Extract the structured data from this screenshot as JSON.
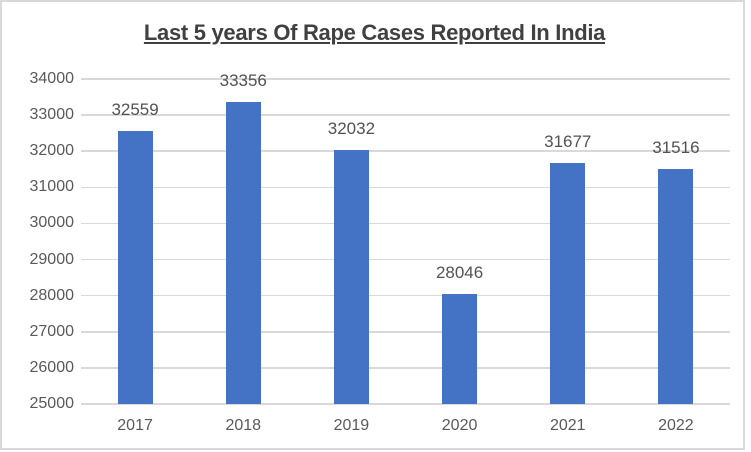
{
  "chart_data": {
    "type": "bar",
    "title": "Last 5 years Of Rape Cases Reported In India",
    "categories": [
      "2017",
      "2018",
      "2019",
      "2020",
      "2021",
      "2022"
    ],
    "values": [
      32559,
      33356,
      32032,
      28046,
      31677,
      31516
    ],
    "data_labels": [
      "32559",
      "33356",
      "32032",
      "28046",
      "31677",
      "31516"
    ],
    "xlabel": "",
    "ylabel": "",
    "ylim": [
      25000,
      34000
    ],
    "ytick_step": 1000,
    "ytick_labels": [
      "34000",
      "33000",
      "32000",
      "31000",
      "30000",
      "29000",
      "28000",
      "27000",
      "26000",
      "25000"
    ],
    "grid": true,
    "legend": "none",
    "colors": {
      "bar": "#4472c4",
      "gridline": "#d9d9d9",
      "axis_line": "#d9d9d9",
      "tick_label": "#595959",
      "data_label": "#525252",
      "title": "#404040",
      "frame_border": "#d9d9d9",
      "background": "#ffffff"
    }
  }
}
